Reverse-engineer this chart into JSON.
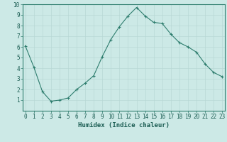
{
  "x": [
    0,
    1,
    2,
    3,
    4,
    5,
    6,
    7,
    8,
    9,
    10,
    11,
    12,
    13,
    14,
    15,
    16,
    17,
    18,
    19,
    20,
    21,
    22,
    23
  ],
  "y": [
    6.1,
    4.1,
    1.8,
    0.9,
    1.0,
    1.2,
    2.0,
    2.6,
    3.3,
    5.1,
    6.7,
    7.9,
    8.9,
    9.7,
    8.9,
    8.3,
    8.2,
    7.2,
    6.4,
    6.0,
    5.5,
    4.4,
    3.6,
    3.2
  ],
  "xlabel": "Humidex (Indice chaleur)",
  "xlim": [
    0,
    23
  ],
  "ylim": [
    0,
    10
  ],
  "xticks": [
    0,
    1,
    2,
    3,
    4,
    5,
    6,
    7,
    8,
    9,
    10,
    11,
    12,
    13,
    14,
    15,
    16,
    17,
    18,
    19,
    20,
    21,
    22,
    23
  ],
  "yticks": [
    1,
    2,
    3,
    4,
    5,
    6,
    7,
    8,
    9,
    10
  ],
  "line_color": "#2e7d6e",
  "marker": "+",
  "bg_color": "#cce9e6",
  "grid_color": "#b8d8d5",
  "font_color": "#1a5c52",
  "xlabel_fontsize": 6.5,
  "tick_fontsize": 5.5
}
